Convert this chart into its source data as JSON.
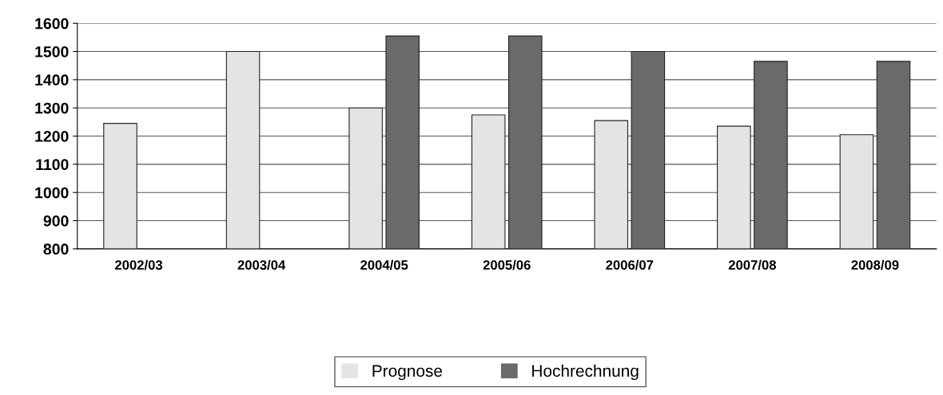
{
  "chart_data": {
    "type": "bar",
    "categories": [
      "2002/03",
      "2003/04",
      "2004/05",
      "2005/06",
      "2006/07",
      "2007/08",
      "2008/09"
    ],
    "series": [
      {
        "name": "Prognose",
        "color": "#e4e4e4",
        "values": [
          1245,
          1500,
          1300,
          1275,
          1255,
          1235,
          1205
        ]
      },
      {
        "name": "Hochrechnung",
        "color": "#6a6a6a",
        "values": [
          null,
          null,
          1555,
          1555,
          1500,
          1465,
          1465
        ]
      }
    ],
    "ylim": [
      800,
      1600
    ],
    "yticks": [
      800,
      900,
      1000,
      1100,
      1200,
      1300,
      1400,
      1500,
      1600
    ],
    "grid": "y",
    "legend": "bottom"
  }
}
